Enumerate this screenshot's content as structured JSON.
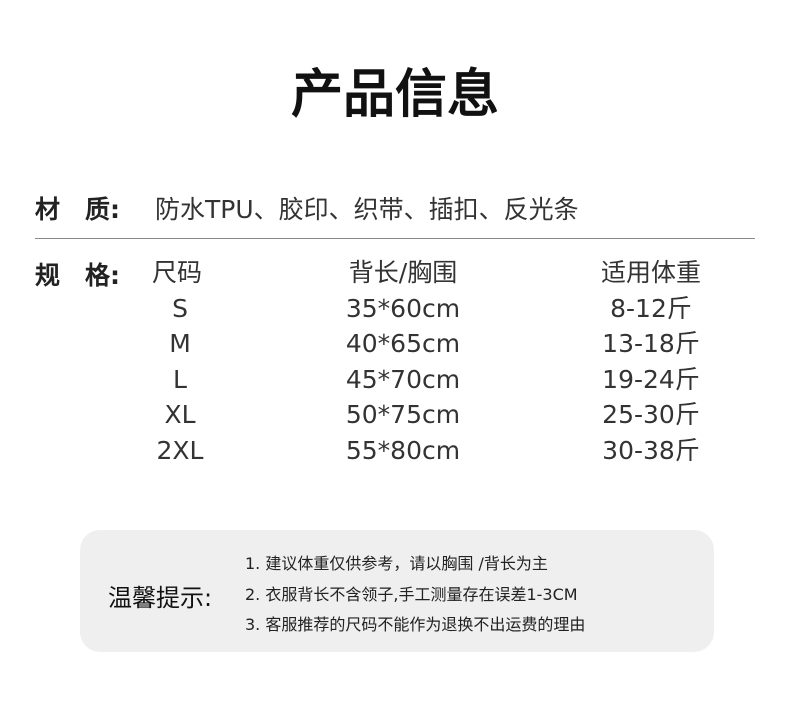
{
  "title": "产品信息",
  "material": {
    "label": "材　质:",
    "value": "防水TPU、胶印、织带、插扣、反光条"
  },
  "spec": {
    "label": "规　格:",
    "headers": [
      "尺码",
      "背长/胸围",
      "适用体重"
    ],
    "rows": [
      [
        "S",
        "35*60cm",
        "8-12斤"
      ],
      [
        "M",
        "40*65cm",
        "13-18斤"
      ],
      [
        "L",
        "45*70cm",
        "19-24斤"
      ],
      [
        "XL",
        "50*75cm",
        "25-30斤"
      ],
      [
        "2XL",
        "55*80cm",
        "30-38斤"
      ]
    ]
  },
  "tips": {
    "label": "温馨提示:",
    "notes": [
      "1. 建议体重仅供参考，请以胸围 /背长为主",
      "2. 衣服背长不含领子,手工测量存在误差1-3CM",
      "3. 客服推荐的尺码不能作为退换不出运费的理由"
    ]
  }
}
